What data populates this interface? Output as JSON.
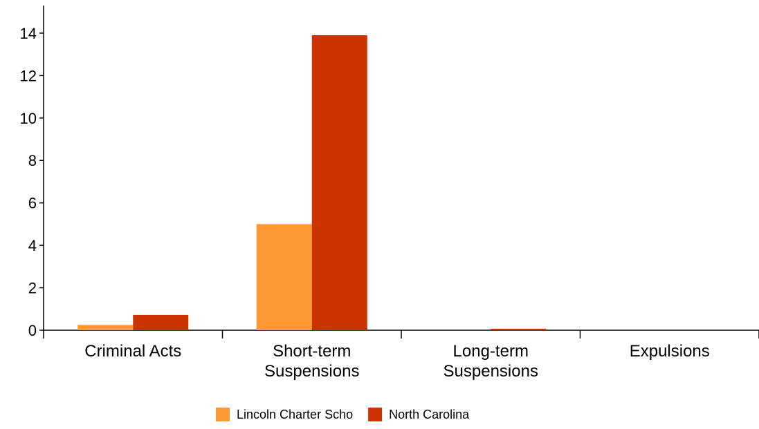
{
  "chart_data": {
    "type": "bar",
    "title": "",
    "xlabel": "",
    "ylabel": "",
    "categories": [
      [
        "Criminal Acts"
      ],
      [
        "Short-term",
        "Suspensions"
      ],
      [
        "Long-term",
        "Suspensions"
      ],
      [
        "Expulsions"
      ]
    ],
    "series": [
      {
        "name": "Lincoln Charter Scho",
        "color": "#ff9933",
        "values": [
          0.25,
          5.0,
          0.0,
          0.0
        ]
      },
      {
        "name": "North Carolina",
        "color": "#cc3300",
        "values": [
          0.72,
          13.9,
          0.07,
          0.0
        ]
      }
    ],
    "ylim": [
      0,
      15.3
    ],
    "yticks": [
      0,
      2,
      4,
      6,
      8,
      10,
      12,
      14
    ],
    "grid": false,
    "legend_position": "bottom-center"
  }
}
